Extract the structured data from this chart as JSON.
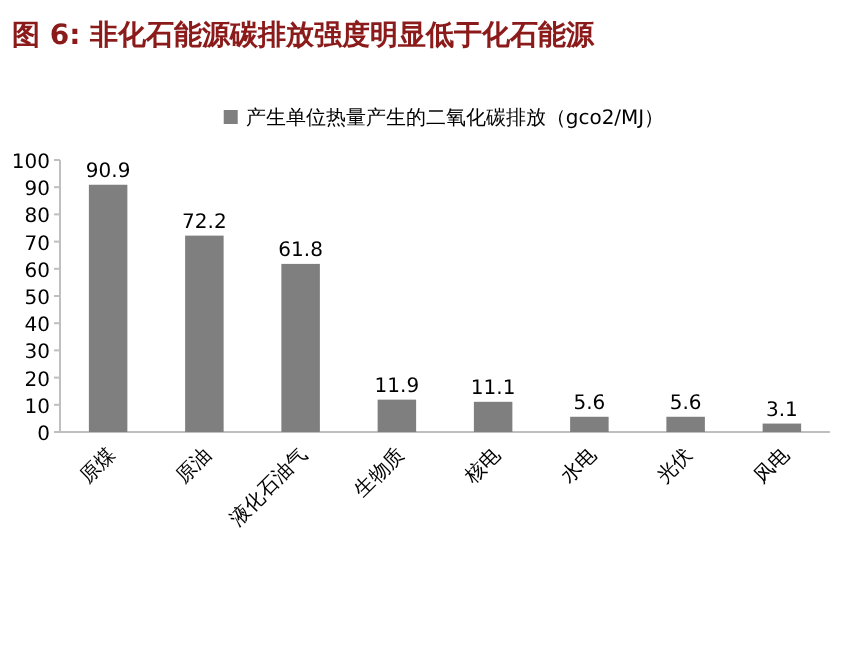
{
  "chart_data": {
    "type": "bar",
    "title": "图 6: 非化石能源碳排放强度明显低于化石能源",
    "categories": [
      "原煤",
      "原油",
      "液化石油气",
      "生物质",
      "核电",
      "水电",
      "光伏",
      "风电"
    ],
    "series": [
      {
        "name": "产生单位热量产生的二氧化碳排放（gco2/MJ）",
        "color": "#7f7f7f",
        "values": [
          90.9,
          72.2,
          61.8,
          11.9,
          11.1,
          5.6,
          5.6,
          3.1
        ]
      }
    ],
    "ylim": [
      0,
      100
    ],
    "yticks": [
      0,
      10,
      20,
      30,
      40,
      50,
      60,
      70,
      80,
      90,
      100
    ],
    "data_labels": true,
    "legend": "top",
    "grid": false
  }
}
